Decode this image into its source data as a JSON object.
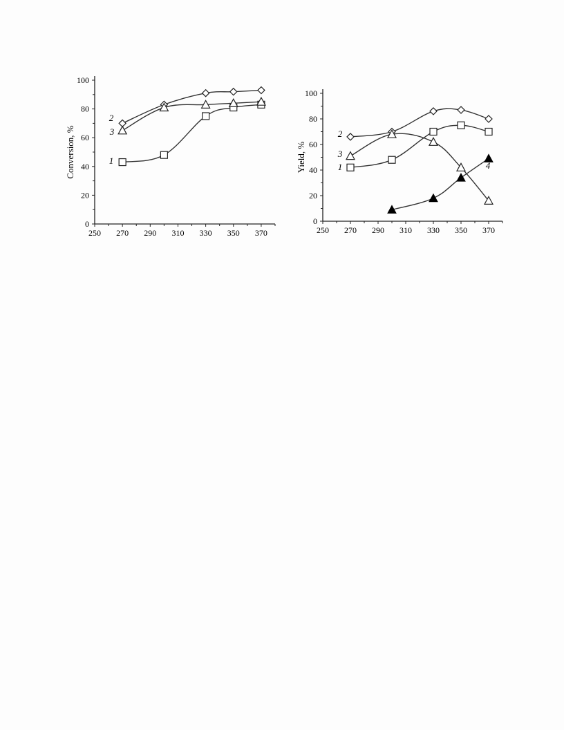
{
  "chart_data": [
    {
      "type": "line",
      "title": "",
      "xlabel": "",
      "ylabel": "Conversion, %",
      "xlim": [
        250,
        380
      ],
      "ylim": [
        0,
        100
      ],
      "xticks": [
        250,
        270,
        290,
        310,
        330,
        350,
        370
      ],
      "yticks": [
        0,
        20,
        40,
        60,
        80,
        100
      ],
      "grid": false,
      "legend": "inline curve numbers",
      "series": [
        {
          "name": "1",
          "marker": "open-square",
          "x": [
            270,
            300,
            330,
            350,
            370
          ],
          "y": [
            43,
            48,
            75,
            81,
            83
          ]
        },
        {
          "name": "2",
          "marker": "open-diamond",
          "x": [
            270,
            300,
            330,
            350,
            370
          ],
          "y": [
            70,
            83,
            91,
            92,
            93
          ]
        },
        {
          "name": "3",
          "marker": "open-triangle",
          "x": [
            270,
            300,
            330,
            350,
            370
          ],
          "y": [
            65,
            81,
            83,
            84,
            85
          ]
        }
      ]
    },
    {
      "type": "line",
      "title": "",
      "xlabel": "",
      "ylabel": "Yield, %",
      "xlim": [
        250,
        380
      ],
      "ylim": [
        0,
        100
      ],
      "xticks": [
        250,
        270,
        290,
        310,
        330,
        350,
        370
      ],
      "yticks": [
        0,
        20,
        40,
        60,
        80,
        100
      ],
      "grid": false,
      "legend": "inline curve numbers",
      "series": [
        {
          "name": "1",
          "marker": "open-square",
          "x": [
            270,
            300,
            330,
            350,
            370
          ],
          "y": [
            42,
            48,
            70,
            75,
            70
          ]
        },
        {
          "name": "2",
          "marker": "open-diamond",
          "x": [
            270,
            300,
            330,
            350,
            370
          ],
          "y": [
            66,
            70,
            86,
            87,
            80
          ]
        },
        {
          "name": "3",
          "marker": "open-triangle",
          "x": [
            270,
            300,
            330,
            350,
            370
          ],
          "y": [
            51,
            68,
            62,
            42,
            16
          ]
        },
        {
          "name": "4",
          "marker": "filled-triangle",
          "x": [
            300,
            330,
            350,
            370
          ],
          "y": [
            9,
            18,
            34,
            49
          ]
        }
      ]
    }
  ]
}
